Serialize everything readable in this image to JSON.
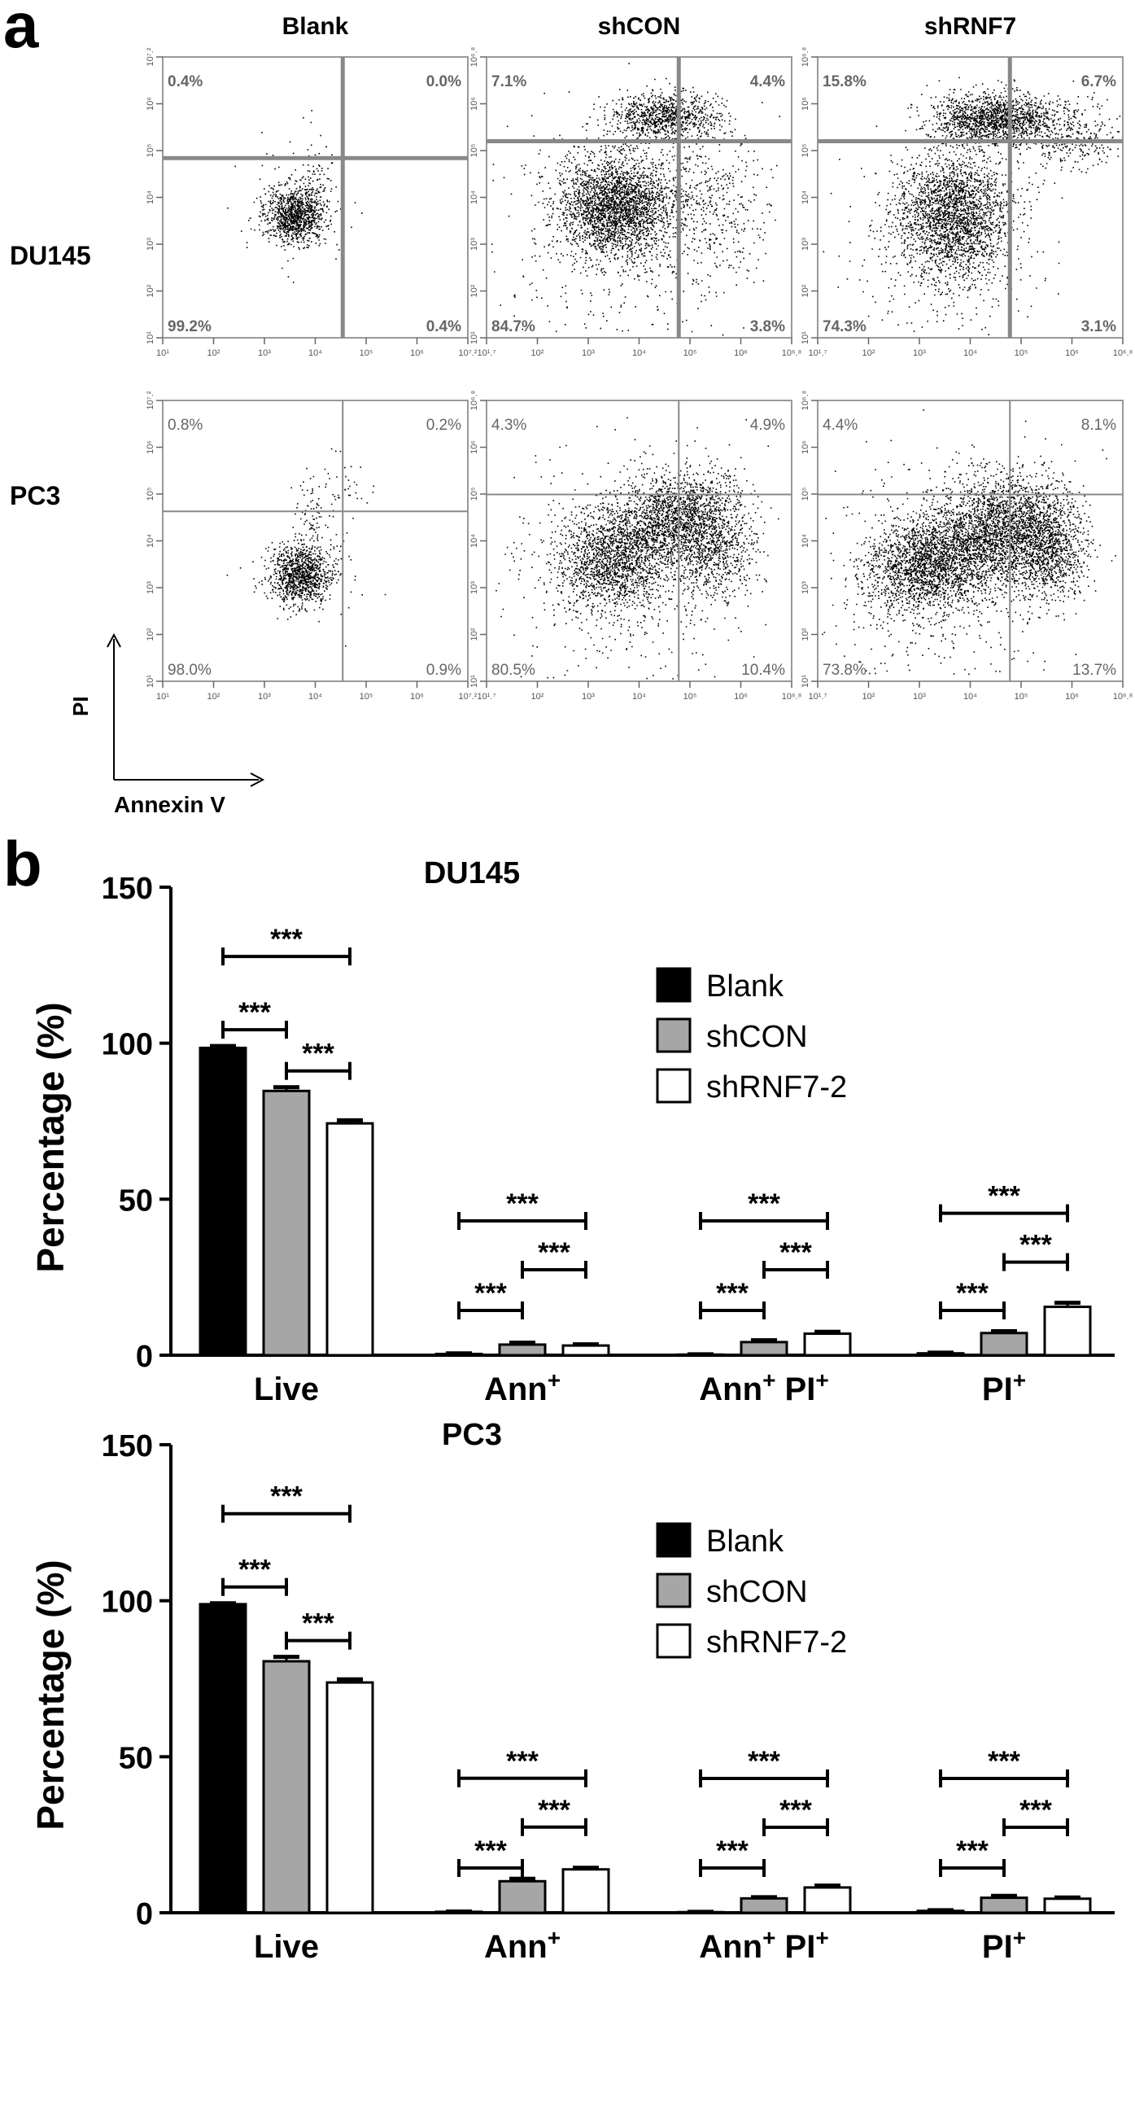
{
  "panel_labels": {
    "a": "a",
    "b": "b"
  },
  "flow": {
    "column_headers": [
      "Blank",
      "shCON",
      "shRNF7"
    ],
    "row_labels": [
      "DU145",
      "PC3"
    ],
    "axis_names": {
      "y": "PI",
      "x": "Annexin V"
    },
    "cells": [
      {
        "row": 0,
        "col": 0,
        "quadrants": {
          "ul": "0.4%",
          "ur": "0.0%",
          "ll": "99.2%",
          "lr": "0.4%"
        },
        "x_ticks": [
          "10¹",
          "10²",
          "10³",
          "10⁴",
          "10⁵",
          "10⁶",
          "10⁷.²"
        ],
        "y_ticks": [
          "10¹",
          "10²",
          "10³",
          "10⁴",
          "10⁵",
          "10⁶",
          "10⁷.²"
        ]
      },
      {
        "row": 0,
        "col": 1,
        "quadrants": {
          "ul": "7.1%",
          "ur": "4.4%",
          "ll": "84.7%",
          "lr": "3.8%"
        },
        "x_ticks": [
          "10¹.⁷",
          "10²",
          "10³",
          "10⁴",
          "10⁵",
          "10⁶",
          "10⁶.⁸"
        ],
        "y_ticks": [
          "10¹",
          "10²",
          "10³",
          "10⁴",
          "10⁵",
          "10⁶",
          "10⁶.⁸"
        ]
      },
      {
        "row": 0,
        "col": 2,
        "quadrants": {
          "ul": "15.8%",
          "ur": "6.7%",
          "ll": "74.3%",
          "lr": "3.1%"
        },
        "x_ticks": [
          "10¹.⁷",
          "10²",
          "10³",
          "10⁴",
          "10⁵",
          "10⁶",
          "10⁶.⁸"
        ],
        "y_ticks": [
          "10¹",
          "10²",
          "10³",
          "10⁴",
          "10⁵",
          "10⁶",
          "10⁶.⁸"
        ]
      },
      {
        "row": 1,
        "col": 0,
        "quadrants": {
          "ul": "0.8%",
          "ur": "0.2%",
          "ll": "98.0%",
          "lr": "0.9%"
        },
        "x_ticks": [
          "10¹",
          "10²",
          "10³",
          "10⁴",
          "10⁵",
          "10⁶",
          "10⁷.²"
        ],
        "y_ticks": [
          "10¹",
          "10²",
          "10³",
          "10⁴",
          "10⁵",
          "10⁶",
          "10⁷.²"
        ]
      },
      {
        "row": 1,
        "col": 1,
        "quadrants": {
          "ul": "4.3%",
          "ur": "4.9%",
          "ll": "80.5%",
          "lr": "10.4%"
        },
        "x_ticks": [
          "10¹.⁷",
          "10²",
          "10³",
          "10⁴",
          "10⁵",
          "10⁶",
          "10⁶.⁸"
        ],
        "y_ticks": [
          "10¹",
          "10²",
          "10³",
          "10⁴",
          "10⁵",
          "10⁶",
          "10⁶.⁸"
        ]
      },
      {
        "row": 1,
        "col": 2,
        "quadrants": {
          "ul": "4.4%",
          "ur": "8.1%",
          "ll": "73.8%",
          "lr": "13.7%"
        },
        "x_ticks": [
          "10¹.⁷",
          "10²",
          "10³",
          "10⁴",
          "10⁵",
          "10⁶",
          "10⁶.⁸"
        ],
        "y_ticks": [
          "10¹",
          "10²",
          "10³",
          "10⁴",
          "10⁵",
          "10⁶",
          "10⁶.⁸"
        ]
      }
    ]
  },
  "chart_data": [
    {
      "type": "bar",
      "title": "DU145",
      "ylabel": "Percentage (%)",
      "xlabel": "",
      "ylim": [
        0,
        150
      ],
      "yticks": [
        0,
        50,
        100,
        150
      ],
      "categories": [
        "Live",
        "Ann+",
        "Ann+ PI+",
        "PI+"
      ],
      "series": [
        {
          "name": "Blank",
          "values": [
            98.5,
            0.4,
            0.2,
            0.6
          ],
          "errors": [
            0.6,
            0.2,
            0.1,
            0.2
          ]
        },
        {
          "name": "shCON",
          "values": [
            84.7,
            3.4,
            4.2,
            7.1
          ],
          "errors": [
            1.2,
            0.6,
            0.6,
            0.6
          ]
        },
        {
          "name": "shRNF7-2",
          "values": [
            74.3,
            3.1,
            6.9,
            15.5
          ],
          "errors": [
            1.0,
            0.4,
            0.6,
            1.3
          ]
        }
      ],
      "significance": "***",
      "legend_position": "top-right",
      "colors": {
        "Blank": "#000000",
        "shCON": "#a6a6a6",
        "shRNF7-2": "#ffffff"
      }
    },
    {
      "type": "bar",
      "title": "PC3",
      "ylabel": "Percentage (%)",
      "xlabel": "",
      "ylim": [
        0,
        150
      ],
      "yticks": [
        0,
        50,
        100,
        150
      ],
      "categories": [
        "Live",
        "Ann+",
        "Ann+ PI+",
        "PI+"
      ],
      "series": [
        {
          "name": "Blank",
          "values": [
            98.9,
            0.3,
            0.2,
            0.6
          ],
          "errors": [
            0.3,
            0.1,
            0.1,
            0.2
          ]
        },
        {
          "name": "shCON",
          "values": [
            80.6,
            10.1,
            4.6,
            4.8
          ],
          "errors": [
            1.4,
            0.8,
            0.4,
            0.6
          ]
        },
        {
          "name": "shRNF7-2",
          "values": [
            73.8,
            13.9,
            8.1,
            4.5
          ],
          "errors": [
            1.0,
            0.5,
            0.6,
            0.4
          ]
        }
      ],
      "significance": "***",
      "legend_position": "top-right",
      "colors": {
        "Blank": "#000000",
        "shCON": "#a6a6a6",
        "shRNF7-2": "#ffffff"
      }
    }
  ]
}
